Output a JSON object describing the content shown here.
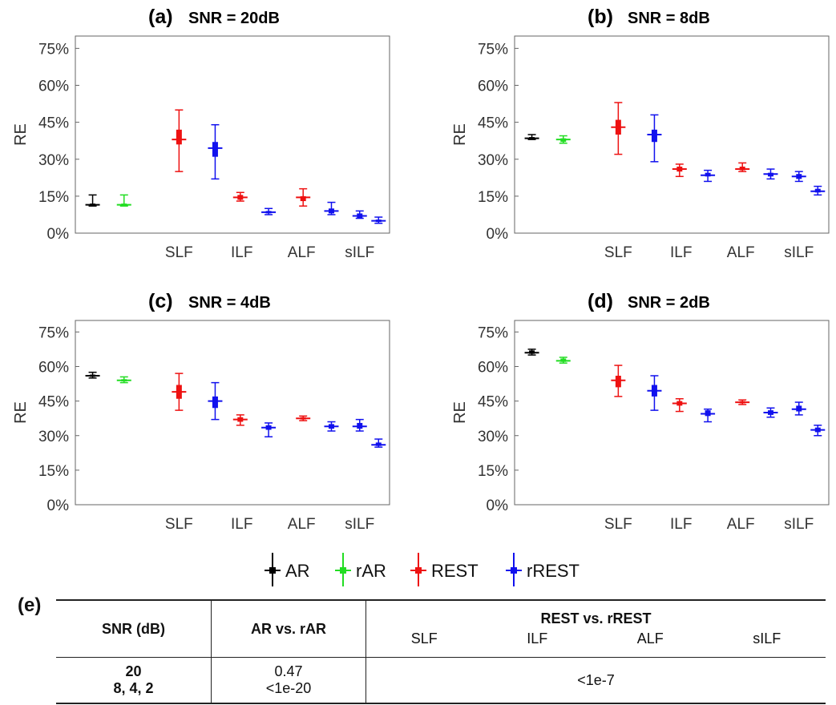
{
  "figure": {
    "panels_labels": [
      "(a)",
      "(b)",
      "(c)",
      "(d)"
    ],
    "legend": [
      "AR",
      "rAR",
      "REST",
      "rREST"
    ],
    "colors": {
      "AR": "#000000",
      "rAR": "#22dd22",
      "REST": "#ee1111",
      "rREST": "#1111ee"
    }
  },
  "chart_data": [
    {
      "type": "box",
      "title": "SNR = 20dB",
      "panel": "(a)",
      "ylabel": "RE",
      "ylim": [
        0,
        80
      ],
      "yticks": [
        "0%",
        "15%",
        "30%",
        "45%",
        "60%",
        "75%"
      ],
      "categories": [
        "SLF",
        "ILF",
        "ALF",
        "sILF"
      ],
      "series": [
        {
          "name": "AR",
          "median": 11.5,
          "q1": 11,
          "q3": 12,
          "min": 11,
          "max": 15.5,
          "outlier": 14
        },
        {
          "name": "rAR",
          "median": 11.5,
          "q1": 11,
          "q3": 12,
          "min": 11,
          "max": 15.5,
          "outlier": 14
        },
        {
          "name": "REST",
          "group": "SLF",
          "median": 38,
          "q1": 36,
          "q3": 42,
          "min": 25,
          "max": 50
        },
        {
          "name": "rREST",
          "group": "SLF",
          "median": 34.5,
          "q1": 31,
          "q3": 37,
          "min": 22,
          "max": 44
        },
        {
          "name": "REST",
          "group": "ILF",
          "median": 14.5,
          "q1": 13.5,
          "q3": 15.5,
          "min": 13,
          "max": 16.5
        },
        {
          "name": "rREST",
          "group": "ILF",
          "median": 8.5,
          "q1": 8,
          "q3": 9,
          "min": 7.5,
          "max": 10
        },
        {
          "name": "REST",
          "group": "ALF",
          "median": 14.5,
          "q1": 13,
          "q3": 15,
          "min": 11,
          "max": 18
        },
        {
          "name": "rREST",
          "group": "ALF",
          "median": 9,
          "q1": 8,
          "q3": 10,
          "min": 7.5,
          "max": 12.5
        },
        {
          "name": "rREST",
          "group": "ALF-2",
          "median": 7,
          "q1": 6,
          "q3": 8,
          "min": 6,
          "max": 9
        },
        {
          "name": "rREST",
          "group": "sILF",
          "median": 5,
          "q1": 4.5,
          "q3": 5.5,
          "min": 4,
          "max": 6.5
        }
      ]
    },
    {
      "type": "box",
      "title": "SNR = 8dB",
      "panel": "(b)",
      "ylabel": "RE",
      "ylim": [
        0,
        80
      ],
      "yticks": [
        "0%",
        "15%",
        "30%",
        "45%",
        "60%",
        "75%"
      ],
      "categories": [
        "SLF",
        "ILF",
        "ALF",
        "sILF"
      ],
      "series": [
        {
          "name": "AR",
          "median": 38.5,
          "q1": 38,
          "q3": 39,
          "min": 38,
          "max": 40
        },
        {
          "name": "rAR",
          "median": 38,
          "q1": 37,
          "q3": 38.5,
          "min": 36.5,
          "max": 39.5
        },
        {
          "name": "REST",
          "group": "SLF",
          "median": 43,
          "q1": 40,
          "q3": 46,
          "min": 32,
          "max": 53
        },
        {
          "name": "rREST",
          "group": "SLF",
          "median": 40,
          "q1": 37,
          "q3": 42,
          "min": 29,
          "max": 48
        },
        {
          "name": "REST",
          "group": "ILF",
          "median": 26,
          "q1": 25,
          "q3": 27,
          "min": 23,
          "max": 28
        },
        {
          "name": "rREST",
          "group": "ILF",
          "median": 23.5,
          "q1": 23,
          "q3": 24.5,
          "min": 21,
          "max": 25.5
        },
        {
          "name": "REST",
          "group": "ALF",
          "median": 26,
          "q1": 25.5,
          "q3": 27,
          "min": 25,
          "max": 28.5
        },
        {
          "name": "rREST",
          "group": "ALF",
          "median": 24,
          "q1": 23,
          "q3": 24.5,
          "min": 22,
          "max": 26
        },
        {
          "name": "rREST",
          "group": "ALF-2",
          "median": 23,
          "q1": 22,
          "q3": 24,
          "min": 21,
          "max": 25
        },
        {
          "name": "rREST",
          "group": "sILF",
          "median": 17,
          "q1": 16.5,
          "q3": 18,
          "min": 15.5,
          "max": 19
        }
      ]
    },
    {
      "type": "box",
      "title": "SNR = 4dB",
      "panel": "(c)",
      "ylabel": "RE",
      "ylim": [
        0,
        80
      ],
      "yticks": [
        "0%",
        "15%",
        "30%",
        "45%",
        "60%",
        "75%"
      ],
      "categories": [
        "SLF",
        "ILF",
        "ALF",
        "sILF"
      ],
      "series": [
        {
          "name": "AR",
          "median": 56,
          "q1": 55.5,
          "q3": 56.5,
          "min": 55,
          "max": 57.5
        },
        {
          "name": "rAR",
          "median": 54,
          "q1": 53.5,
          "q3": 54.5,
          "min": 53,
          "max": 55.5
        },
        {
          "name": "REST",
          "group": "SLF",
          "median": 49,
          "q1": 46,
          "q3": 52,
          "min": 41,
          "max": 57
        },
        {
          "name": "rREST",
          "group": "SLF",
          "median": 45,
          "q1": 42,
          "q3": 47,
          "min": 37,
          "max": 53
        },
        {
          "name": "REST",
          "group": "ILF",
          "median": 37,
          "q1": 36,
          "q3": 38,
          "min": 34.5,
          "max": 39
        },
        {
          "name": "rREST",
          "group": "ILF",
          "median": 33.5,
          "q1": 32.5,
          "q3": 34.5,
          "min": 29.5,
          "max": 35.5
        },
        {
          "name": "REST",
          "group": "ALF",
          "median": 37.5,
          "q1": 37,
          "q3": 38,
          "min": 36.5,
          "max": 38.5
        },
        {
          "name": "rREST",
          "group": "ALF",
          "median": 34,
          "q1": 33,
          "q3": 35,
          "min": 32,
          "max": 36
        },
        {
          "name": "rREST",
          "group": "ALF-2",
          "median": 34,
          "q1": 33,
          "q3": 35.5,
          "min": 32,
          "max": 37
        },
        {
          "name": "rREST",
          "group": "sILF",
          "median": 26,
          "q1": 25.5,
          "q3": 27,
          "min": 25,
          "max": 28.5
        }
      ]
    },
    {
      "type": "box",
      "title": "SNR = 2dB",
      "panel": "(d)",
      "ylabel": "RE",
      "ylim": [
        0,
        80
      ],
      "yticks": [
        "0%",
        "15%",
        "30%",
        "45%",
        "60%",
        "75%"
      ],
      "categories": [
        "SLF",
        "ILF",
        "ALF",
        "sILF"
      ],
      "series": [
        {
          "name": "AR",
          "median": 66,
          "q1": 65.5,
          "q3": 67,
          "min": 65,
          "max": 67.5
        },
        {
          "name": "rAR",
          "median": 62.5,
          "q1": 62,
          "q3": 63.5,
          "min": 61.5,
          "max": 64
        },
        {
          "name": "REST",
          "group": "SLF",
          "median": 54,
          "q1": 51,
          "q3": 56,
          "min": 47,
          "max": 60.5
        },
        {
          "name": "rREST",
          "group": "SLF",
          "median": 49.5,
          "q1": 47,
          "q3": 52,
          "min": 41,
          "max": 56
        },
        {
          "name": "REST",
          "group": "ILF",
          "median": 44,
          "q1": 43,
          "q3": 45,
          "min": 40.5,
          "max": 46
        },
        {
          "name": "rREST",
          "group": "ILF",
          "median": 39.5,
          "q1": 38.5,
          "q3": 41,
          "min": 36,
          "max": 41.5
        },
        {
          "name": "REST",
          "group": "ALF",
          "median": 44.5,
          "q1": 44,
          "q3": 45,
          "min": 43.5,
          "max": 45.5
        },
        {
          "name": "rREST",
          "group": "ALF",
          "median": 40,
          "q1": 39,
          "q3": 41,
          "min": 38,
          "max": 42
        },
        {
          "name": "rREST",
          "group": "ALF-2",
          "median": 41.5,
          "q1": 40.5,
          "q3": 43,
          "min": 39,
          "max": 44.5
        },
        {
          "name": "rREST",
          "group": "sILF",
          "median": 32.5,
          "q1": 31.5,
          "q3": 33.5,
          "min": 30,
          "max": 34.5
        }
      ]
    }
  ],
  "table": {
    "label": "(e)",
    "col_snr": "SNR (dB)",
    "col_ar": "AR vs. rAR",
    "col_rest": "REST vs. rREST",
    "sub_cols": [
      "SLF",
      "ILF",
      "ALF",
      "sILF"
    ],
    "row1_snr": "20",
    "row2_snr": "8, 4, 2",
    "row1_ar": "0.47",
    "row2_ar": "<1e-20",
    "rest_value": "<1e-7"
  }
}
